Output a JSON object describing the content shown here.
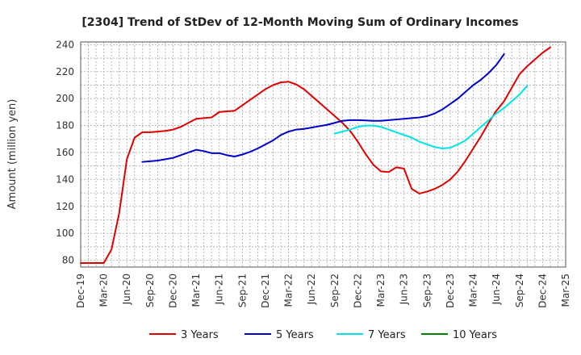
{
  "chart_data": {
    "type": "line",
    "title": "[2304]  Trend of StDev of 12-Month Moving Sum of Ordinary Incomes",
    "xlabel": "",
    "ylabel": "Amount (million yen)",
    "ylim": [
      75,
      242
    ],
    "yticks": [
      80,
      100,
      120,
      140,
      160,
      180,
      200,
      220,
      240
    ],
    "x_tick_labels": [
      "Dec-19",
      "Mar-20",
      "Jun-20",
      "Sep-20",
      "Dec-20",
      "Mar-21",
      "Jun-21",
      "Sep-21",
      "Dec-21",
      "Mar-22",
      "Jun-22",
      "Sep-22",
      "Dec-22",
      "Mar-23",
      "Jun-23",
      "Sep-23",
      "Dec-23",
      "Mar-24",
      "Jun-24",
      "Sep-24",
      "Dec-24",
      "Mar-25"
    ],
    "x_range_months": [
      0,
      63
    ],
    "grid": true,
    "legend_position": "bottom",
    "series": [
      {
        "name": "3 Years",
        "color": "#e00000",
        "points": [
          [
            0,
            78
          ],
          [
            1,
            78
          ],
          [
            2,
            78
          ],
          [
            3,
            78
          ],
          [
            4,
            88
          ],
          [
            5,
            115
          ],
          [
            6,
            155
          ],
          [
            7,
            171
          ],
          [
            8,
            175
          ],
          [
            9,
            175
          ],
          [
            10,
            175.5
          ],
          [
            11,
            176
          ],
          [
            12,
            177
          ],
          [
            13,
            179
          ],
          [
            14,
            182
          ],
          [
            15,
            185
          ],
          [
            16,
            185.5
          ],
          [
            17,
            186
          ],
          [
            18,
            190
          ],
          [
            19,
            190.5
          ],
          [
            20,
            191
          ],
          [
            21,
            195
          ],
          [
            22,
            199
          ],
          [
            23,
            203
          ],
          [
            24,
            207
          ],
          [
            25,
            210
          ],
          [
            26,
            212
          ],
          [
            27,
            212.5
          ],
          [
            28,
            210.5
          ],
          [
            29,
            207
          ],
          [
            30,
            202
          ],
          [
            31,
            197
          ],
          [
            32,
            192
          ],
          [
            33,
            187
          ],
          [
            34,
            182
          ],
          [
            35,
            176
          ],
          [
            36,
            168
          ],
          [
            37,
            159
          ],
          [
            38,
            151
          ],
          [
            39,
            146
          ],
          [
            40,
            145.5
          ],
          [
            41,
            149
          ],
          [
            42,
            148
          ],
          [
            43,
            133
          ],
          [
            44,
            129.5
          ],
          [
            45,
            131
          ],
          [
            46,
            133
          ],
          [
            47,
            136
          ],
          [
            48,
            140
          ],
          [
            49,
            146
          ],
          [
            50,
            154
          ],
          [
            51,
            163
          ],
          [
            52,
            172
          ],
          [
            53,
            182
          ],
          [
            54,
            191
          ],
          [
            55,
            198
          ],
          [
            56,
            208
          ],
          [
            57,
            218
          ],
          [
            58,
            224
          ],
          [
            59,
            229
          ],
          [
            60,
            234
          ],
          [
            61,
            238
          ]
        ]
      },
      {
        "name": "5 Years",
        "color": "#0000cc",
        "points": [
          [
            8,
            153
          ],
          [
            9,
            153.5
          ],
          [
            10,
            154
          ],
          [
            11,
            155
          ],
          [
            12,
            156
          ],
          [
            13,
            158
          ],
          [
            14,
            160
          ],
          [
            15,
            162
          ],
          [
            16,
            161
          ],
          [
            17,
            159.5
          ],
          [
            18,
            159.5
          ],
          [
            19,
            158
          ],
          [
            20,
            157
          ],
          [
            21,
            158.5
          ],
          [
            22,
            160.5
          ],
          [
            23,
            163
          ],
          [
            24,
            166
          ],
          [
            25,
            169
          ],
          [
            26,
            173
          ],
          [
            27,
            175.5
          ],
          [
            28,
            177
          ],
          [
            29,
            177.5
          ],
          [
            30,
            178.5
          ],
          [
            31,
            179.5
          ],
          [
            32,
            180.5
          ],
          [
            33,
            182
          ],
          [
            34,
            183.5
          ],
          [
            35,
            184
          ],
          [
            36,
            184
          ],
          [
            37,
            183.8
          ],
          [
            38,
            183.5
          ],
          [
            39,
            183.5
          ],
          [
            40,
            184
          ],
          [
            41,
            184.5
          ],
          [
            42,
            185
          ],
          [
            43,
            185.5
          ],
          [
            44,
            186
          ],
          [
            45,
            187
          ],
          [
            46,
            189
          ],
          [
            47,
            192
          ],
          [
            48,
            196
          ],
          [
            49,
            200
          ],
          [
            50,
            205
          ],
          [
            51,
            210
          ],
          [
            52,
            214
          ],
          [
            53,
            219
          ],
          [
            54,
            225
          ],
          [
            55,
            233
          ]
        ]
      },
      {
        "name": "7 Years",
        "color": "#00e5e5",
        "points": [
          [
            33,
            174
          ],
          [
            34,
            175.5
          ],
          [
            35,
            177
          ],
          [
            36,
            179
          ],
          [
            37,
            180
          ],
          [
            38,
            180
          ],
          [
            39,
            179
          ],
          [
            40,
            177
          ],
          [
            41,
            175
          ],
          [
            42,
            173
          ],
          [
            43,
            171
          ],
          [
            44,
            168
          ],
          [
            45,
            166
          ],
          [
            46,
            164
          ],
          [
            47,
            163
          ],
          [
            48,
            163.5
          ],
          [
            49,
            166
          ],
          [
            50,
            169
          ],
          [
            51,
            174
          ],
          [
            52,
            179
          ],
          [
            53,
            184
          ],
          [
            54,
            189
          ],
          [
            55,
            193
          ],
          [
            56,
            198
          ],
          [
            57,
            203
          ],
          [
            58,
            209.5
          ]
        ]
      },
      {
        "name": "10 Years",
        "color": "#008000",
        "points": []
      }
    ]
  }
}
